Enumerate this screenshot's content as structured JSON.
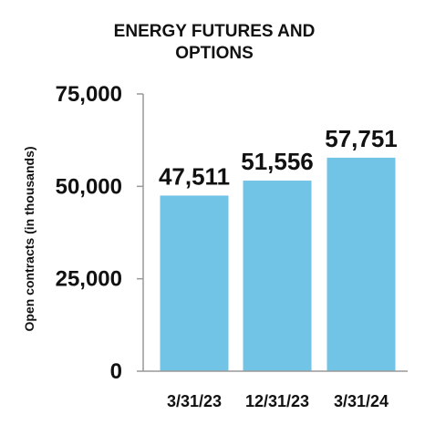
{
  "chart_data": {
    "type": "bar",
    "title_lines": [
      "ENERGY FUTURES AND",
      "OPTIONS"
    ],
    "ylabel": "Open contracts (in thousands)",
    "xlabel": "",
    "categories": [
      "3/31/23",
      "12/31/23",
      "3/31/24"
    ],
    "values": [
      47511,
      51556,
      57751
    ],
    "data_labels": [
      "47,511",
      "51,556",
      "57,751"
    ],
    "ylim": [
      0,
      75000
    ],
    "yticks": [
      0,
      25000,
      50000,
      75000
    ],
    "ytick_labels": [
      "0",
      "25,000",
      "50,000",
      "75,000"
    ],
    "grid": false,
    "bar_color": "#72c4e6",
    "axis_color": "#999999"
  }
}
